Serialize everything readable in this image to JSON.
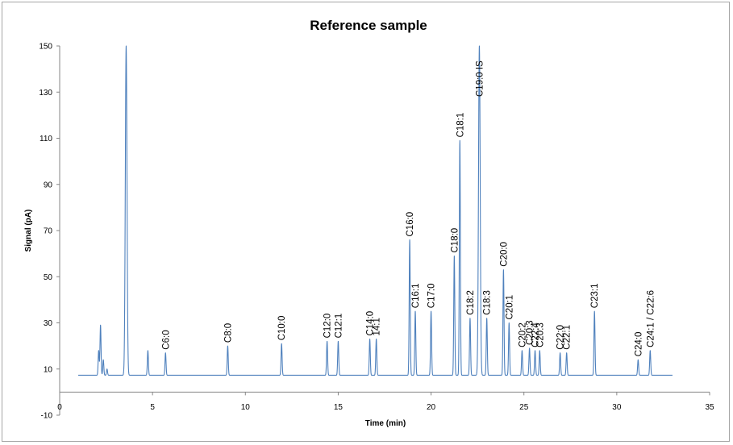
{
  "chart_data": {
    "type": "line",
    "title": "Reference sample",
    "xlabel": "Time (min)",
    "ylabel": "Signal (pA)",
    "xlim": [
      0,
      35
    ],
    "ylim": [
      -10,
      150
    ],
    "x_ticks": [
      "0",
      "5",
      "10",
      "15",
      "20",
      "25",
      "30",
      "35"
    ],
    "y_ticks": [
      "-10",
      "10",
      "30",
      "50",
      "70",
      "90",
      "110",
      "130",
      "150"
    ],
    "grid": false,
    "line_color": "#4f81bd",
    "baseline": 7.3,
    "trace_end": 33.0,
    "peaks": [
      {
        "label": "",
        "x": 2.1,
        "y": 18
      },
      {
        "label": "",
        "x": 2.2,
        "y": 29
      },
      {
        "label": "",
        "x": 2.35,
        "y": 14
      },
      {
        "label": "",
        "x": 2.55,
        "y": 10
      },
      {
        "label": "",
        "x": 3.58,
        "y": 150
      },
      {
        "label": "",
        "x": 4.75,
        "y": 18
      },
      {
        "label": "C6:0",
        "x": 5.7,
        "y": 17
      },
      {
        "label": "C8:0",
        "x": 9.05,
        "y": 20
      },
      {
        "label": "C10:0",
        "x": 11.95,
        "y": 21
      },
      {
        "label": "C12:0",
        "x": 14.4,
        "y": 22
      },
      {
        "label": "C12:1",
        "x": 15.0,
        "y": 22
      },
      {
        "label": "C14:0",
        "x": 16.7,
        "y": 23
      },
      {
        "label": "14:1",
        "x": 17.05,
        "y": 23
      },
      {
        "label": "C16:0",
        "x": 18.85,
        "y": 66
      },
      {
        "label": "C16:1",
        "x": 19.15,
        "y": 35
      },
      {
        "label": "C17:0",
        "x": 20.0,
        "y": 35
      },
      {
        "label": "C18:0",
        "x": 21.25,
        "y": 59
      },
      {
        "label": "C18:1",
        "x": 21.55,
        "y": 109
      },
      {
        "label": "C18:2",
        "x": 22.1,
        "y": 32
      },
      {
        "label": "C19:0 IS",
        "x": 22.6,
        "y": 150
      },
      {
        "label": "C18:3",
        "x": 23.0,
        "y": 32
      },
      {
        "label": "C20:0",
        "x": 23.9,
        "y": 53
      },
      {
        "label": "C20:1",
        "x": 24.2,
        "y": 30
      },
      {
        "label": "C20:2",
        "x": 24.9,
        "y": 18
      },
      {
        "label": "C20:3",
        "x": 25.3,
        "y": 19
      },
      {
        "label": "C22:4",
        "x": 25.6,
        "y": 18
      },
      {
        "label": "C20:3",
        "x": 25.85,
        "y": 18
      },
      {
        "label": "C22:0",
        "x": 26.95,
        "y": 17
      },
      {
        "label": "C22:1",
        "x": 27.3,
        "y": 17
      },
      {
        "label": "C23:1",
        "x": 28.8,
        "y": 35
      },
      {
        "label": "C24:0",
        "x": 31.15,
        "y": 14
      },
      {
        "label": "C24:1 / C22:6",
        "x": 31.8,
        "y": 18
      }
    ]
  }
}
